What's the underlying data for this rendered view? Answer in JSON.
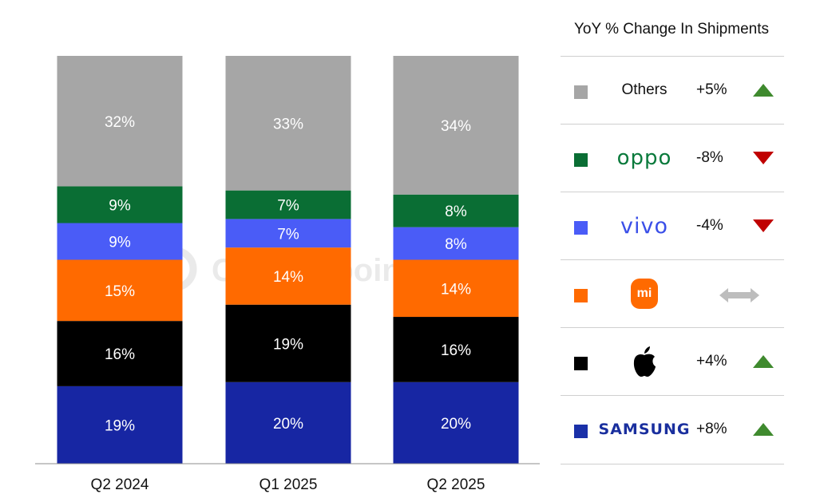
{
  "chart_data": {
    "type": "bar",
    "stacked": true,
    "percent_stacked": true,
    "categories": [
      "Q2 2024",
      "Q1 2025",
      "Q2 2025"
    ],
    "series": [
      {
        "name": "Samsung",
        "color": "#1726a3",
        "values": [
          19,
          20,
          20
        ],
        "labels": [
          "19%",
          "20%",
          "20%"
        ]
      },
      {
        "name": "Apple",
        "color": "#000000",
        "values": [
          16,
          19,
          16
        ],
        "labels": [
          "16%",
          "19%",
          "16%"
        ]
      },
      {
        "name": "Xiaomi",
        "color": "#ff6a00",
        "values": [
          15,
          14,
          14
        ],
        "labels": [
          "15%",
          "14%",
          "14%"
        ]
      },
      {
        "name": "vivo",
        "color": "#4a5cf7",
        "values": [
          9,
          7,
          8
        ],
        "labels": [
          "9%",
          "7%",
          "8%"
        ]
      },
      {
        "name": "OPPO",
        "color": "#0a6e34",
        "values": [
          9,
          7,
          8
        ],
        "labels": [
          "9%",
          "7%",
          "8%"
        ]
      },
      {
        "name": "Others",
        "color": "#a6a6a6",
        "values": [
          32,
          33,
          34
        ],
        "labels": [
          "32%",
          "33%",
          "34%"
        ]
      }
    ],
    "ylim": [
      0,
      100
    ],
    "grid": false,
    "legend_placement": "right",
    "watermark": "Counterpoint"
  },
  "legend": {
    "title": "YoY % Change In Shipments",
    "rows": [
      {
        "brand": "Others",
        "swatch_color": "#a6a6a6",
        "change": "+5%",
        "direction": "up"
      },
      {
        "brand": "oppo",
        "swatch_color": "#0a6e34",
        "change": "-8%",
        "direction": "down"
      },
      {
        "brand": "vivo",
        "swatch_color": "#4a5cf7",
        "change": "-4%",
        "direction": "down"
      },
      {
        "brand": "mi",
        "swatch_color": "#ff6a00",
        "change": "",
        "direction": "flat"
      },
      {
        "brand": "apple",
        "swatch_color": "#000000",
        "change": "+4%",
        "direction": "up"
      },
      {
        "brand": "SAMSUNG",
        "swatch_color": "#1a30a8",
        "change": "+8%",
        "direction": "up"
      }
    ],
    "colors": {
      "up": "#3f8a2e",
      "down": "#c00000",
      "flat": "#bdbdbd"
    }
  }
}
